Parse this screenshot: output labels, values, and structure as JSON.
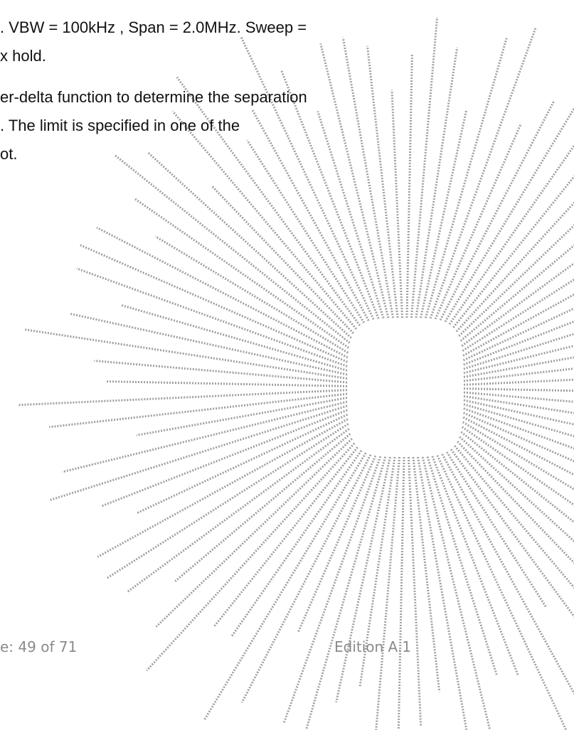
{
  "body": {
    "lines": [
      ". VBW = 100kHz , Span = 2.0MHz. Sweep =",
      "x hold.",
      "er-delta function to determine the separation",
      ". The limit is specified in one of the",
      "ot."
    ]
  },
  "footer": {
    "page": "e: 49 of 71",
    "edition": "Edition A.1"
  }
}
